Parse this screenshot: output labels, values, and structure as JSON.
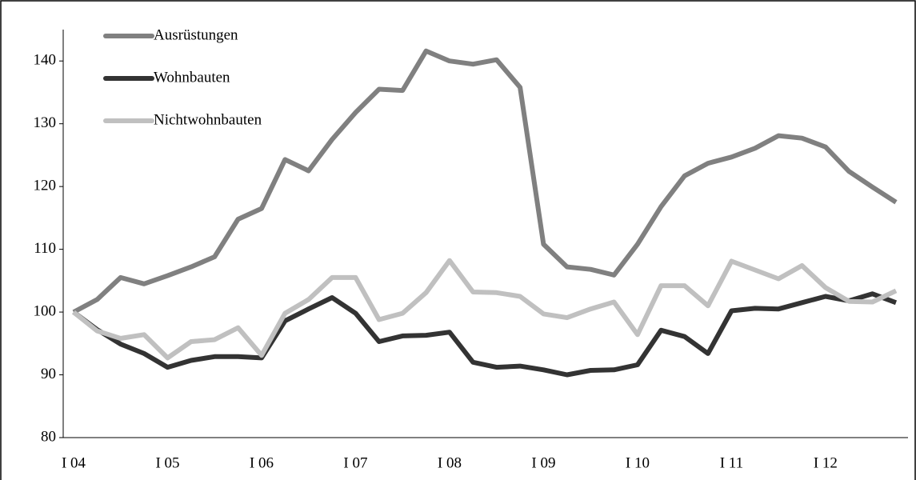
{
  "chart_data": {
    "type": "line",
    "categories": [
      "I 04",
      null,
      null,
      null,
      "I 05",
      null,
      null,
      null,
      "I 06",
      null,
      null,
      null,
      "I 07",
      null,
      null,
      null,
      "I 08",
      null,
      null,
      null,
      "I 09",
      null,
      null,
      null,
      "I 10",
      null,
      null,
      null,
      "I 11",
      null,
      null,
      null,
      "I 12",
      null,
      null,
      null
    ],
    "series": [
      {
        "name": "Ausrüstungen",
        "color": "#808080",
        "values": [
          100,
          102,
          105.5,
          104.5,
          105.8,
          107.2,
          108.8,
          114.8,
          116.5,
          124.3,
          122.5,
          127.5,
          131.8,
          135.5,
          135.3,
          141.6,
          140,
          139.5,
          140.2,
          135.8,
          110.8,
          107.2,
          106.8,
          105.9,
          110.8,
          116.8,
          121.7,
          123.7,
          124.7,
          126.1,
          128.1,
          127.7,
          126.3,
          122.4,
          119.9,
          117.5
        ]
      },
      {
        "name": "Wohnbauten",
        "color": "#333333",
        "values": [
          100,
          97.2,
          94.9,
          93.4,
          91.2,
          92.3,
          92.9,
          92.9,
          92.7,
          98.6,
          100.5,
          102.3,
          99.8,
          95.3,
          96.2,
          96.3,
          96.8,
          92.0,
          91.2,
          91.4,
          90.8,
          90.0,
          90.7,
          90.8,
          91.6,
          97.1,
          96.1,
          93.4,
          100.2,
          100.6,
          100.5,
          101.5,
          102.5,
          101.8,
          102.9,
          101.5
        ]
      },
      {
        "name": "Nichtwohnbauten",
        "color": "#c0c0c0",
        "values": [
          100,
          97.0,
          95.8,
          96.4,
          92.7,
          95.3,
          95.6,
          97.5,
          93.1,
          99.8,
          102.0,
          105.5,
          105.5,
          98.8,
          99.8,
          103.1,
          108.2,
          103.2,
          103.1,
          102.5,
          99.7,
          99.1,
          100.5,
          101.6,
          96.4,
          104.2,
          104.2,
          101.0,
          108.1,
          106.7,
          105.3,
          107.4,
          103.9,
          101.7,
          101.6,
          103.4
        ]
      }
    ],
    "ylim": [
      80,
      145
    ],
    "yticks": [
      80,
      90,
      100,
      110,
      120,
      130,
      140
    ],
    "legend": "upper left"
  }
}
